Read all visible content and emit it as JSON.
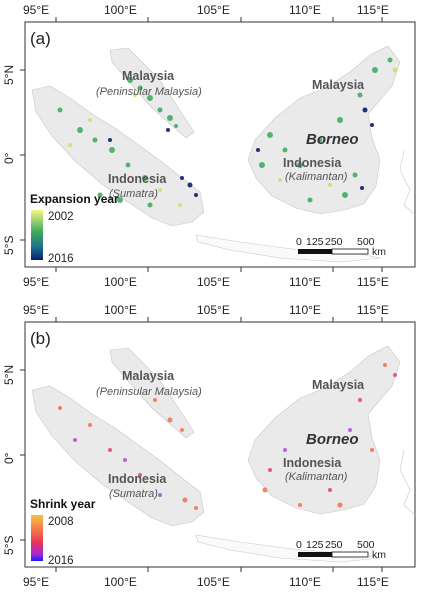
{
  "lon_ticks": [
    "95°E",
    "100°E",
    "105°E",
    "110°E",
    "115°E"
  ],
  "lat_ticks": [
    "5°N",
    "0°",
    "5°S"
  ],
  "panels": [
    {
      "label": "(a)",
      "legend_title": "Expansion year",
      "legend_start": "2002",
      "legend_end": "2016",
      "colors": {
        "low": "#f4f58a",
        "mid": "#3aa95a",
        "high": "#0b1e6b"
      }
    },
    {
      "label": "(b)",
      "legend_title": "Shrink year",
      "legend_start": "2008",
      "legend_end": "2016",
      "colors": {
        "low": "#f7c244",
        "mid": "#e8355a",
        "high": "#1a1aff"
      }
    }
  ],
  "labels": {
    "malaysia": "Malaysia",
    "peninsular": "(Peninsular Malaysia)",
    "indonesia": "Indonesia",
    "sumatra": "(Sumatra)",
    "borneo": "Borneo",
    "kalimantan": "(Kalimantan)"
  },
  "scalebar": {
    "t0": "0",
    "t1": "125",
    "t2": "250",
    "t3": "500",
    "unit": "km"
  }
}
